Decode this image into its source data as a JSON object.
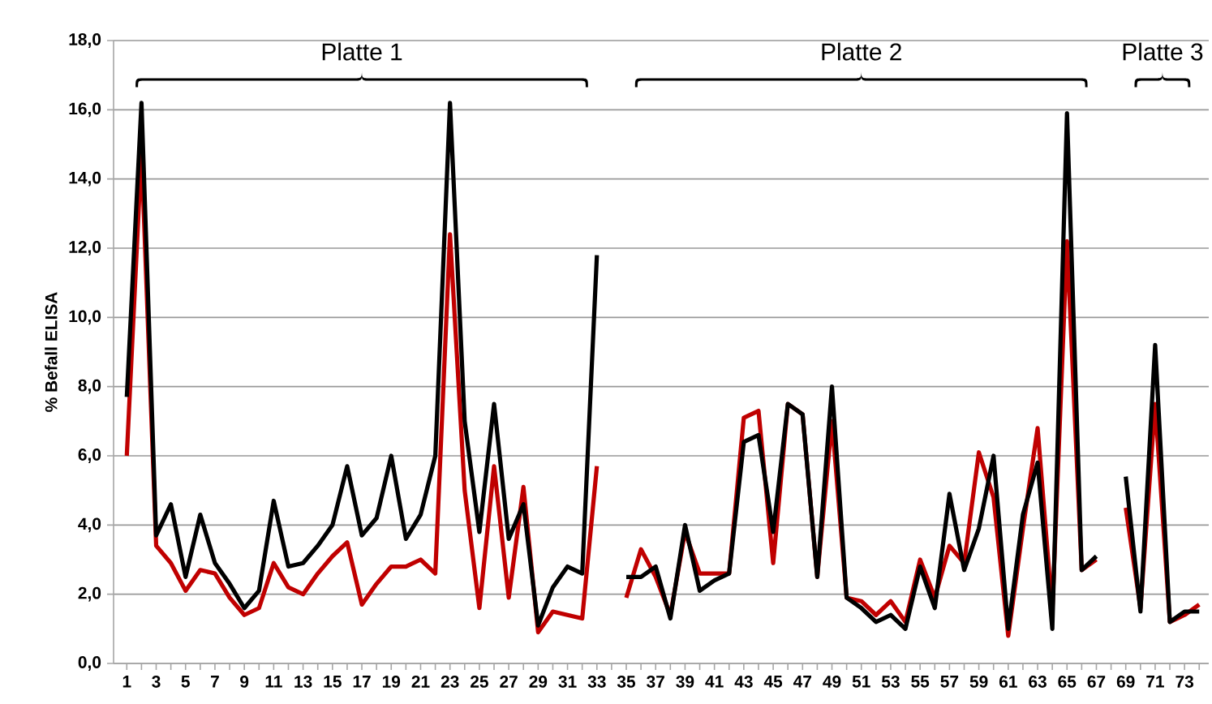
{
  "chart_data": {
    "type": "line",
    "ylabel": "% Befall ELISA",
    "categories": [
      "1",
      null,
      "3",
      null,
      "5",
      null,
      "7",
      null,
      "9",
      null,
      "11",
      null,
      "13",
      null,
      "15",
      null,
      "17",
      null,
      "19",
      null,
      "21",
      null,
      "23",
      null,
      "25",
      null,
      "27",
      null,
      "29",
      null,
      "31",
      null,
      "33",
      null,
      "35",
      null,
      "37",
      null,
      "39",
      null,
      "41",
      null,
      "43",
      null,
      "45",
      null,
      "47",
      null,
      "49",
      null,
      "51",
      null,
      "53",
      null,
      "55",
      null,
      "57",
      null,
      "59",
      null,
      "61",
      null,
      "63",
      null,
      "65",
      null,
      "67",
      null,
      "69",
      null,
      "71",
      null,
      "73",
      null
    ],
    "series": [
      {
        "color": "#c00000",
        "values": [
          6.0,
          14.8,
          3.4,
          2.9,
          2.1,
          2.7,
          2.6,
          1.9,
          1.4,
          1.6,
          2.9,
          2.2,
          2.0,
          2.6,
          3.1,
          3.5,
          1.7,
          2.3,
          2.8,
          2.8,
          3.0,
          2.6,
          12.4,
          5.0,
          1.6,
          5.7,
          1.9,
          5.1,
          0.9,
          1.5,
          1.4,
          1.3,
          5.7,
          null,
          1.9,
          3.3,
          2.5,
          1.4,
          3.8,
          2.6,
          2.6,
          2.6,
          7.1,
          7.3,
          2.9,
          7.5,
          7.2,
          2.5,
          7.0,
          1.9,
          1.8,
          1.4,
          1.8,
          1.2,
          3.0,
          1.9,
          3.4,
          2.9,
          6.1,
          4.8,
          0.8,
          3.9,
          6.8,
          1.5,
          12.2,
          2.7,
          3.0,
          null,
          4.5,
          1.6,
          7.5,
          1.2,
          1.4,
          1.7
        ]
      },
      {
        "color": "#000000",
        "values": [
          7.7,
          16.2,
          3.7,
          4.6,
          2.5,
          4.3,
          2.9,
          2.3,
          1.6,
          2.1,
          4.7,
          2.8,
          2.9,
          3.4,
          4.0,
          5.7,
          3.7,
          4.2,
          6.0,
          3.6,
          4.3,
          6.0,
          16.2,
          7.0,
          3.8,
          7.5,
          3.6,
          4.6,
          1.1,
          2.2,
          2.8,
          2.6,
          11.8,
          null,
          2.5,
          2.5,
          2.8,
          1.3,
          4.0,
          2.1,
          2.4,
          2.6,
          6.4,
          6.6,
          3.8,
          7.5,
          7.2,
          2.5,
          8.0,
          1.9,
          1.6,
          1.2,
          1.4,
          1.0,
          2.8,
          1.6,
          4.9,
          2.7,
          3.9,
          6.0,
          1.0,
          4.3,
          5.8,
          1.0,
          15.9,
          2.7,
          3.1,
          null,
          5.4,
          1.5,
          9.2,
          1.2,
          1.5,
          1.5
        ]
      }
    ],
    "ylim": [
      0,
      18
    ],
    "yticks": [
      {
        "value": 0,
        "label": "0,0"
      },
      {
        "value": 2,
        "label": "2,0"
      },
      {
        "value": 4,
        "label": "4,0"
      },
      {
        "value": 6,
        "label": "6,0"
      },
      {
        "value": 8,
        "label": "8,0"
      },
      {
        "value": 10,
        "label": "10,0"
      },
      {
        "value": 12,
        "label": "12,0"
      },
      {
        "value": 14,
        "label": "14,0"
      },
      {
        "value": 16,
        "label": "16,0"
      },
      {
        "value": 18,
        "label": "18,0"
      }
    ],
    "grid": "y",
    "annotations": [
      "Platte 1",
      "Platte 2",
      "Platte 3"
    ]
  }
}
